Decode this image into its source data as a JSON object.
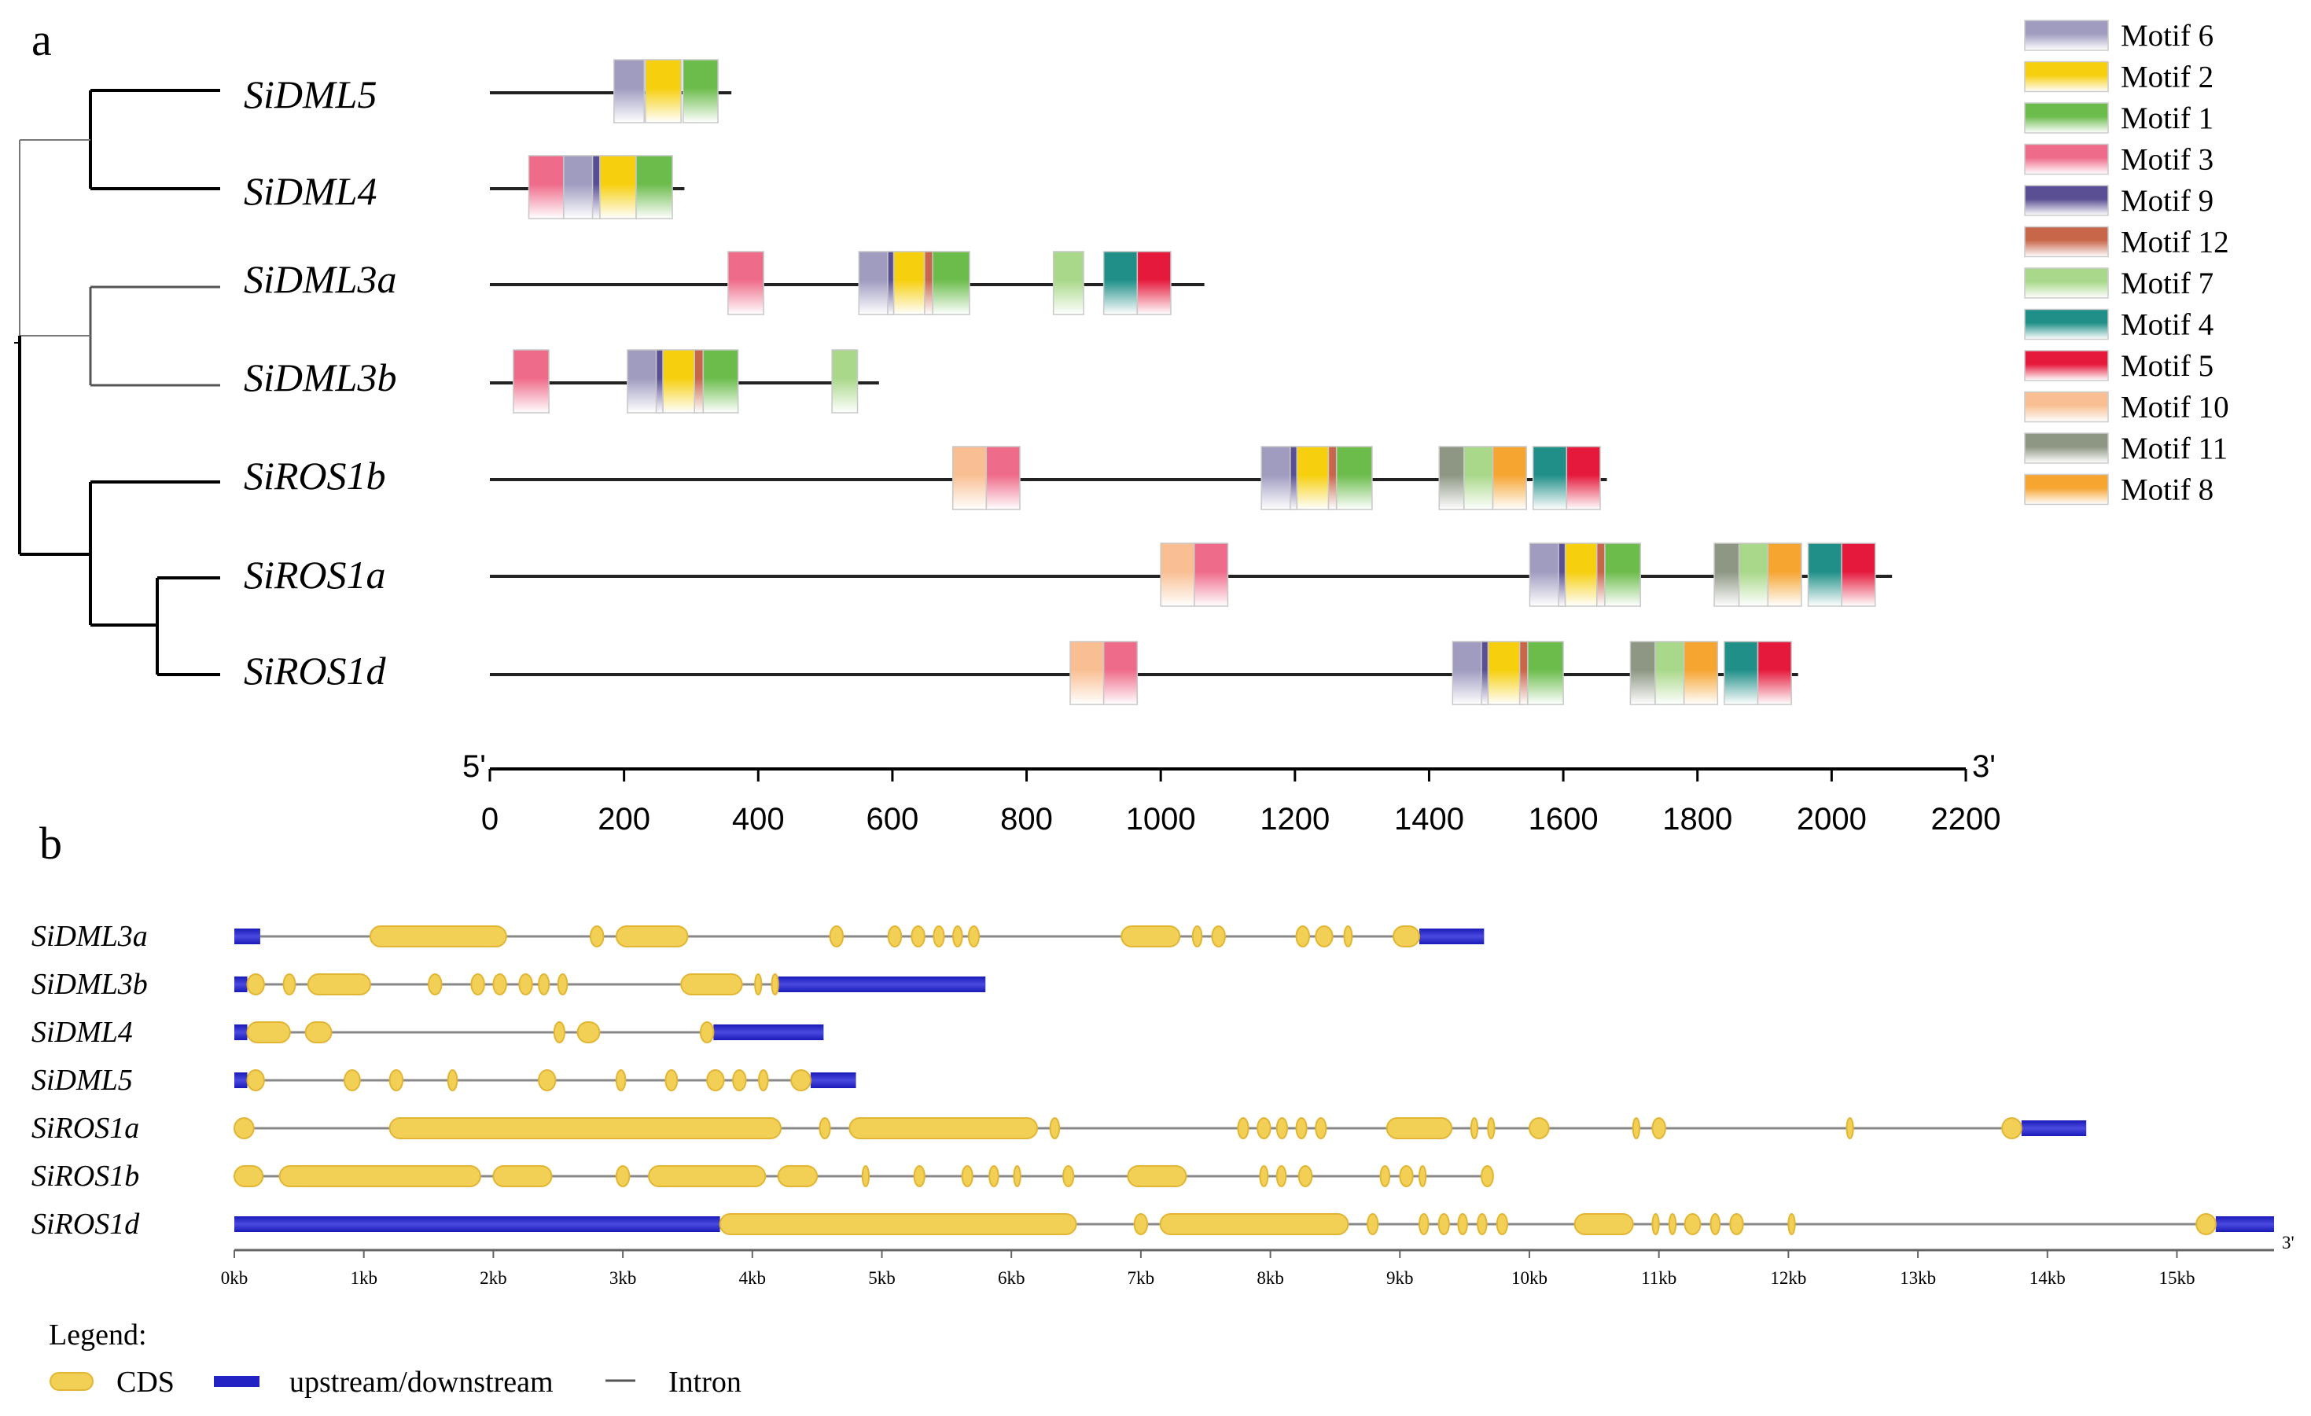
{
  "panel_a": {
    "label": "a",
    "scale": {
      "five_prime": "5'",
      "three_prime": "3'",
      "min": 0,
      "max": 2200,
      "ticks": [
        0,
        200,
        400,
        600,
        800,
        1000,
        1200,
        1400,
        1600,
        1800,
        2000,
        2200
      ]
    },
    "motif_legend": [
      {
        "id": 6,
        "name": "Motif 6",
        "color": "#9f9cc0"
      },
      {
        "id": 2,
        "name": "Motif 2",
        "color": "#f6cf0e"
      },
      {
        "id": 1,
        "name": "Motif 1",
        "color": "#6cbc4c"
      },
      {
        "id": 3,
        "name": "Motif 3",
        "color": "#ef6b8a"
      },
      {
        "id": 9,
        "name": "Motif 9",
        "color": "#5a4f94"
      },
      {
        "id": 12,
        "name": "Motif 12",
        "color": "#c8664a"
      },
      {
        "id": 7,
        "name": "Motif 7",
        "color": "#a9d88a"
      },
      {
        "id": 4,
        "name": "Motif 4",
        "color": "#1f8f88"
      },
      {
        "id": 5,
        "name": "Motif 5",
        "color": "#e5193c"
      },
      {
        "id": 10,
        "name": "Motif 10",
        "color": "#f9bf93"
      },
      {
        "id": 11,
        "name": "Motif 11",
        "color": "#8d9784"
      },
      {
        "id": 8,
        "name": "Motif 8",
        "color": "#f6a531"
      }
    ],
    "genes": [
      {
        "name": "SiDML5",
        "length": 360,
        "motifs": [
          [
            6,
            185,
            230
          ],
          [
            2,
            232,
            285
          ],
          [
            1,
            288,
            340
          ]
        ]
      },
      {
        "name": "SiDML4",
        "length": 290,
        "motifs": [
          [
            3,
            58,
            110
          ],
          [
            6,
            110,
            158
          ],
          [
            9,
            153,
            164
          ],
          [
            2,
            164,
            218
          ],
          [
            1,
            218,
            272
          ]
        ]
      },
      {
        "name": "SiDML3a",
        "length": 1065,
        "motifs": [
          [
            3,
            355,
            408
          ],
          [
            6,
            550,
            600
          ],
          [
            9,
            593,
            602
          ],
          [
            2,
            602,
            655
          ],
          [
            12,
            648,
            662
          ],
          [
            1,
            660,
            715
          ],
          [
            7,
            840,
            885
          ],
          [
            4,
            915,
            965
          ],
          [
            5,
            965,
            1015
          ]
        ]
      },
      {
        "name": "SiDML3b",
        "length": 580,
        "motifs": [
          [
            3,
            35,
            88
          ],
          [
            6,
            205,
            255
          ],
          [
            9,
            248,
            258
          ],
          [
            2,
            258,
            310
          ],
          [
            12,
            305,
            318
          ],
          [
            1,
            318,
            370
          ],
          [
            7,
            510,
            548
          ]
        ]
      },
      {
        "name": "SiROS1b",
        "length": 1665,
        "motifs": [
          [
            10,
            690,
            740
          ],
          [
            3,
            740,
            790
          ],
          [
            6,
            1150,
            1200
          ],
          [
            9,
            1193,
            1203
          ],
          [
            2,
            1203,
            1256
          ],
          [
            12,
            1250,
            1262
          ],
          [
            1,
            1262,
            1315
          ],
          [
            11,
            1415,
            1452
          ],
          [
            7,
            1452,
            1495
          ],
          [
            8,
            1495,
            1545
          ],
          [
            4,
            1555,
            1605
          ],
          [
            5,
            1605,
            1655
          ]
        ]
      },
      {
        "name": "SiROS1a",
        "length": 2090,
        "motifs": [
          [
            10,
            1000,
            1050
          ],
          [
            3,
            1050,
            1100
          ],
          [
            6,
            1550,
            1600
          ],
          [
            9,
            1593,
            1603
          ],
          [
            2,
            1603,
            1656
          ],
          [
            12,
            1650,
            1662
          ],
          [
            1,
            1662,
            1715
          ],
          [
            11,
            1825,
            1862
          ],
          [
            7,
            1862,
            1905
          ],
          [
            8,
            1905,
            1955
          ],
          [
            4,
            1965,
            2015
          ],
          [
            5,
            2015,
            2065
          ]
        ]
      },
      {
        "name": "SiROS1d",
        "length": 1950,
        "motifs": [
          [
            10,
            865,
            915
          ],
          [
            3,
            915,
            965
          ],
          [
            6,
            1435,
            1485
          ],
          [
            9,
            1478,
            1488
          ],
          [
            2,
            1488,
            1541
          ],
          [
            12,
            1535,
            1547
          ],
          [
            1,
            1547,
            1600
          ],
          [
            11,
            1700,
            1737
          ],
          [
            7,
            1737,
            1780
          ],
          [
            8,
            1780,
            1830
          ],
          [
            4,
            1840,
            1890
          ],
          [
            5,
            1890,
            1940
          ]
        ]
      }
    ]
  },
  "panel_b": {
    "label": "b",
    "three_prime": "3'",
    "axis_max_kb": 15.75,
    "ticks": [
      "0kb",
      "1kb",
      "2kb",
      "3kb",
      "4kb",
      "5kb",
      "6kb",
      "7kb",
      "8kb",
      "9kb",
      "10kb",
      "11kb",
      "12kb",
      "13kb",
      "14kb",
      "15kb"
    ],
    "genes": [
      {
        "name": "SiDML3a",
        "utr": [
          [
            0,
            0.2
          ],
          [
            9.15,
            9.65
          ]
        ],
        "cds": [
          [
            1.05,
            2.1
          ],
          [
            2.75,
            2.85
          ],
          [
            2.95,
            3.5
          ],
          [
            4.6,
            4.7
          ],
          [
            5.05,
            5.15
          ],
          [
            5.23,
            5.33
          ],
          [
            5.4,
            5.48
          ],
          [
            5.55,
            5.62
          ],
          [
            5.67,
            5.75
          ],
          [
            6.85,
            7.3
          ],
          [
            7.4,
            7.47
          ],
          [
            7.55,
            7.65
          ],
          [
            8.2,
            8.3
          ],
          [
            8.35,
            8.48
          ],
          [
            8.57,
            8.63
          ],
          [
            8.95,
            9.15
          ]
        ]
      },
      {
        "name": "SiDML3b",
        "utr": [
          [
            0,
            0.1
          ],
          [
            4.2,
            5.8
          ]
        ],
        "cds": [
          [
            0.1,
            0.23
          ],
          [
            0.38,
            0.47
          ],
          [
            0.57,
            1.05
          ],
          [
            1.5,
            1.6
          ],
          [
            1.83,
            1.93
          ],
          [
            2.0,
            2.1
          ],
          [
            2.2,
            2.3
          ],
          [
            2.35,
            2.43
          ],
          [
            2.5,
            2.57
          ],
          [
            3.45,
            3.92
          ],
          [
            4.02,
            4.07
          ],
          [
            4.15,
            4.2
          ]
        ]
      },
      {
        "name": "SiDML4",
        "utr": [
          [
            0,
            0.1
          ],
          [
            3.7,
            4.55
          ]
        ],
        "cds": [
          [
            0.1,
            0.43
          ],
          [
            0.55,
            0.75
          ],
          [
            2.47,
            2.55
          ],
          [
            2.65,
            2.82
          ],
          [
            3.6,
            3.7
          ]
        ]
      },
      {
        "name": "SiDML5",
        "utr": [
          [
            0,
            0.1
          ],
          [
            4.45,
            4.8
          ]
        ],
        "cds": [
          [
            0.1,
            0.23
          ],
          [
            0.85,
            0.97
          ],
          [
            1.2,
            1.3
          ],
          [
            1.65,
            1.72
          ],
          [
            2.35,
            2.48
          ],
          [
            2.95,
            3.02
          ],
          [
            3.33,
            3.42
          ],
          [
            3.65,
            3.78
          ],
          [
            3.85,
            3.95
          ],
          [
            4.05,
            4.12
          ],
          [
            4.3,
            4.45
          ]
        ]
      },
      {
        "name": "SiROS1a",
        "utr": [
          [
            13.8,
            14.3
          ]
        ],
        "cds": [
          [
            0,
            0.15
          ],
          [
            1.2,
            4.22
          ],
          [
            4.52,
            4.6
          ],
          [
            4.75,
            6.2
          ],
          [
            6.3,
            6.37
          ],
          [
            7.75,
            7.83
          ],
          [
            7.9,
            8.0
          ],
          [
            8.05,
            8.13
          ],
          [
            8.2,
            8.28
          ],
          [
            8.35,
            8.43
          ],
          [
            8.9,
            9.4
          ],
          [
            9.55,
            9.6
          ],
          [
            9.68,
            9.73
          ],
          [
            10.0,
            10.15
          ],
          [
            10.8,
            10.85
          ],
          [
            10.95,
            11.05
          ],
          [
            12.45,
            12.5
          ],
          [
            13.65,
            13.8
          ]
        ]
      },
      {
        "name": "SiROS1b",
        "utr": [],
        "cds": [
          [
            0,
            0.22
          ],
          [
            0.35,
            1.9
          ],
          [
            2.0,
            2.45
          ],
          [
            2.95,
            3.05
          ],
          [
            3.2,
            4.1
          ],
          [
            4.2,
            4.5
          ],
          [
            4.85,
            4.9
          ],
          [
            5.25,
            5.33
          ],
          [
            5.62,
            5.7
          ],
          [
            5.83,
            5.9
          ],
          [
            6.02,
            6.07
          ],
          [
            6.4,
            6.48
          ],
          [
            6.9,
            7.35
          ],
          [
            7.92,
            7.98
          ],
          [
            8.05,
            8.12
          ],
          [
            8.22,
            8.32
          ],
          [
            8.85,
            8.92
          ],
          [
            9.0,
            9.1
          ],
          [
            9.15,
            9.2
          ],
          [
            9.63,
            9.72
          ]
        ]
      },
      {
        "name": "SiROS1d",
        "utr": [
          [
            0,
            3.75
          ],
          [
            15.3,
            15.75
          ]
        ],
        "cds": [
          [
            3.75,
            6.5
          ],
          [
            6.95,
            7.05
          ],
          [
            7.15,
            8.6
          ],
          [
            8.75,
            8.83
          ],
          [
            9.15,
            9.22
          ],
          [
            9.3,
            9.38
          ],
          [
            9.45,
            9.52
          ],
          [
            9.6,
            9.67
          ],
          [
            9.75,
            9.83
          ],
          [
            10.35,
            10.8
          ],
          [
            10.95,
            11.0
          ],
          [
            11.08,
            11.13
          ],
          [
            11.2,
            11.32
          ],
          [
            11.4,
            11.47
          ],
          [
            11.55,
            11.65
          ],
          [
            12.0,
            12.05
          ],
          [
            15.15,
            15.3
          ]
        ]
      }
    ],
    "legend": {
      "title": "Legend:",
      "cds": "CDS",
      "utr": "upstream/downstream",
      "intron": "Intron"
    }
  },
  "colors": {
    "cds": "#f2cf55",
    "cds_edge": "#e2b634",
    "utr": "#2323c4",
    "intron": "#888888",
    "backbone": "#222222"
  }
}
